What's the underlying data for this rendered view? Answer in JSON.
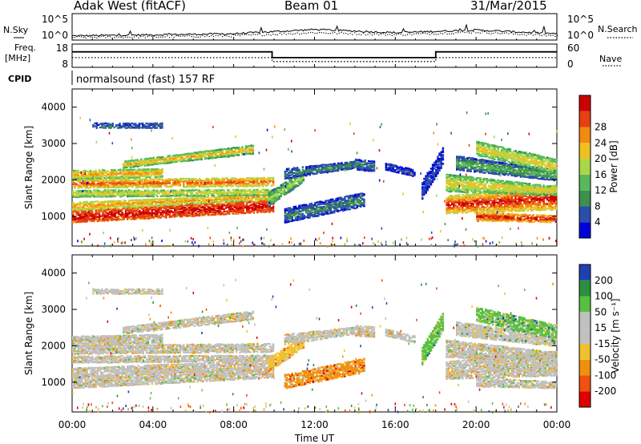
{
  "header": {
    "station": "Adak West (fitACF)",
    "beam": "Beam 01",
    "date": "31/Mar/2015"
  },
  "side_labels": {
    "nsky": "N.Sky",
    "nsearch": "N.Search",
    "freq_line1": "Freq.",
    "freq_line2": "[MHz]",
    "nave": "Nave",
    "cpid": "CPID",
    "cpid_value": "normalsound (fast) 157 RF"
  },
  "colors": {
    "power": [
      "#0000dd",
      "#2a4fa8",
      "#3f8f4d",
      "#58b95a",
      "#a8d848",
      "#f0c020",
      "#f08a10",
      "#e84010",
      "#cc0000"
    ],
    "velocity": [
      "#e00000",
      "#f05010",
      "#f09010",
      "#f0c030",
      "#c0c0c0",
      "#c0c0c0",
      "#58c040",
      "#2a9040",
      "#2040b0"
    ]
  },
  "chart_data": [
    {
      "type": "line",
      "name": "nsky_nsearch",
      "ylabel": "N.Sky",
      "right_label": "N.Search",
      "left_ticks": [
        "10^5",
        "10^0"
      ],
      "right_ticks": [
        "10^5",
        "10^0"
      ],
      "x": [
        "00:00",
        "04:00",
        "08:00",
        "12:00",
        "16:00",
        "20:00",
        "00:00"
      ],
      "series": [
        {
          "values": [
            0.8,
            1.0,
            1.2,
            2.0,
            1.4,
            1.9,
            1.2
          ]
        },
        {
          "values": [
            0.6,
            0.7,
            0.9,
            1.5,
            1.1,
            1.6,
            0.9
          ]
        }
      ]
    },
    {
      "type": "line",
      "name": "freq_nave",
      "ylabel": "Freq. [MHz]",
      "right_label": "Nave",
      "left_ticks": [
        "18",
        "8"
      ],
      "right_ticks": [
        "60",
        "0"
      ],
      "x_hours": [
        0,
        9.9,
        9.9,
        18.0,
        18.0,
        24.0
      ],
      "series": [
        {
          "name": "Freq",
          "values": [
            14,
            14,
            11,
            11,
            14,
            14
          ]
        },
        {
          "name": "Nave",
          "values": [
            11,
            11,
            9,
            9,
            11,
            11
          ]
        }
      ]
    },
    {
      "type": "heatmap",
      "name": "power",
      "ylabel": "Slant Range [km]",
      "yticks": [
        "1000",
        "2000",
        "3000",
        "4000"
      ],
      "ylim": [
        180,
        4500
      ],
      "xlim_hours": [
        0,
        24
      ],
      "colorbar_label": "Power [dB]",
      "colorbar_ticks": [
        "4",
        "8",
        "12",
        "16",
        "20",
        "24",
        "28"
      ]
    },
    {
      "type": "heatmap",
      "name": "velocity",
      "ylabel": "Slant Range [km]",
      "yticks": [
        "1000",
        "2000",
        "3000",
        "4000"
      ],
      "ylim": [
        180,
        4500
      ],
      "xlim_hours": [
        0,
        24
      ],
      "xlabel": "Time UT",
      "xticks": [
        "00:00",
        "04:00",
        "08:00",
        "12:00",
        "16:00",
        "20:00",
        "00:00"
      ],
      "colorbar_label": "Velocity [m s⁻¹]",
      "colorbar_ticks": [
        "200",
        "100",
        "50",
        "15",
        "-15",
        "-50",
        "-100",
        "-200"
      ]
    }
  ]
}
